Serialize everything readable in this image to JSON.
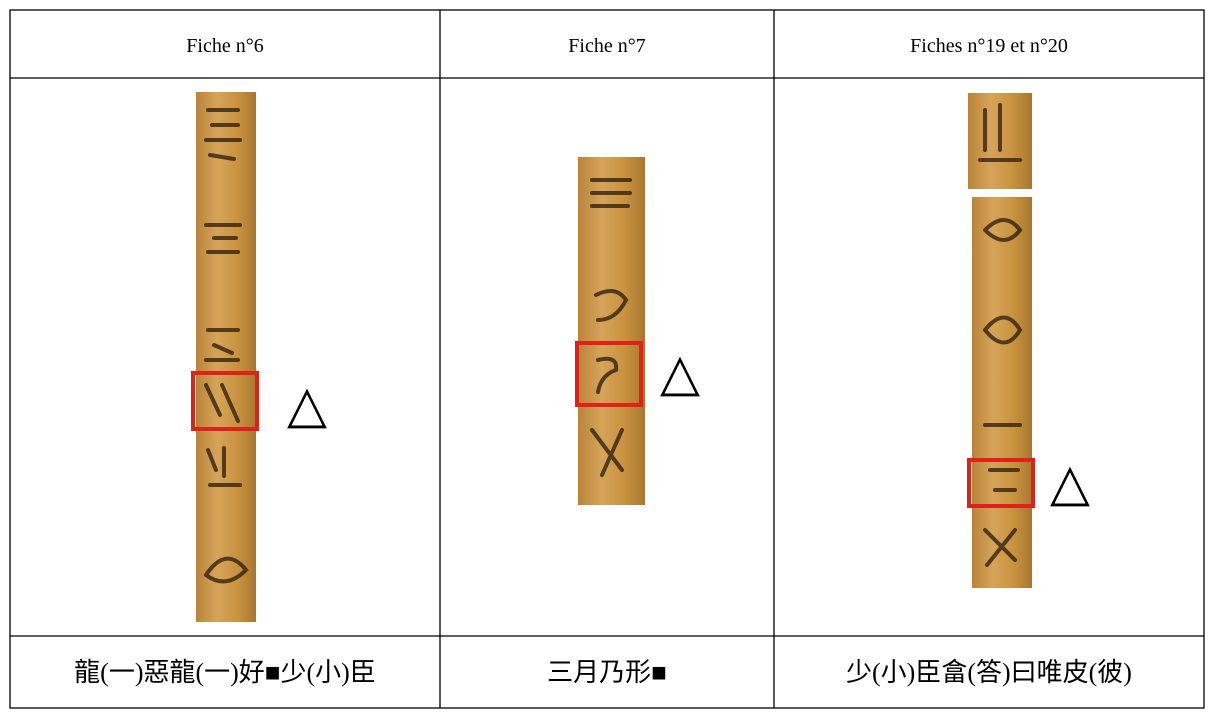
{
  "table": {
    "header": [
      "Fiche n°6",
      "Fiche n°7",
      "Fiches n°19 et n°20"
    ],
    "footer": [
      "龍(一)惡龍(一)好■少(小)臣",
      "三月乃形■",
      "少(小)臣畣(答)曰唯皮(彼)"
    ],
    "markers": [
      "△",
      "△",
      "△"
    ]
  }
}
